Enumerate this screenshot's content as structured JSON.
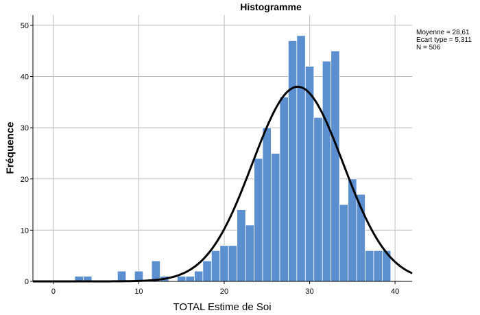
{
  "chart_data": {
    "type": "bar",
    "title": "Histogramme",
    "xlabel": "TOTAL Estime de Soi",
    "ylabel": "Fréquence",
    "xlim": [
      -2.4,
      42
    ],
    "ylim": [
      0,
      52
    ],
    "x_ticks": [
      0,
      10,
      20,
      30,
      40
    ],
    "y_ticks": [
      0,
      10,
      20,
      30,
      40,
      50
    ],
    "grid": true,
    "bin_width": 1,
    "bins": [
      {
        "x": 3,
        "count": 1
      },
      {
        "x": 4,
        "count": 1
      },
      {
        "x": 8,
        "count": 2
      },
      {
        "x": 10,
        "count": 2
      },
      {
        "x": 12,
        "count": 4
      },
      {
        "x": 13,
        "count": 1
      },
      {
        "x": 15,
        "count": 1
      },
      {
        "x": 16,
        "count": 1
      },
      {
        "x": 17,
        "count": 2
      },
      {
        "x": 18,
        "count": 4
      },
      {
        "x": 19,
        "count": 6
      },
      {
        "x": 20,
        "count": 7
      },
      {
        "x": 21,
        "count": 7
      },
      {
        "x": 22,
        "count": 14
      },
      {
        "x": 23,
        "count": 11
      },
      {
        "x": 24,
        "count": 24
      },
      {
        "x": 25,
        "count": 30
      },
      {
        "x": 26,
        "count": 25
      },
      {
        "x": 27,
        "count": 36
      },
      {
        "x": 28,
        "count": 47
      },
      {
        "x": 29,
        "count": 48
      },
      {
        "x": 30,
        "count": 42
      },
      {
        "x": 31,
        "count": 32
      },
      {
        "x": 32,
        "count": 43
      },
      {
        "x": 33,
        "count": 45
      },
      {
        "x": 34,
        "count": 15
      },
      {
        "x": 35,
        "count": 20
      },
      {
        "x": 36,
        "count": 17
      },
      {
        "x": 37,
        "count": 6
      },
      {
        "x": 38,
        "count": 6
      },
      {
        "x": 39,
        "count": 6
      }
    ],
    "normal_curve": {
      "mean": 28.61,
      "sd": 5.311,
      "n": 506
    },
    "stats_lines": [
      "Moyenne = 28,61",
      "Ecart type = 5,311",
      "N = 506"
    ],
    "colors": {
      "bar": "#5b8fd0",
      "bar_edge": "#ffffff",
      "curve": "#000000",
      "grid": "#bdbdbd",
      "axis": "#000000"
    }
  }
}
